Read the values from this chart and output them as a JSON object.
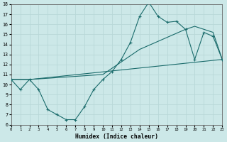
{
  "xlabel": "Humidex (Indice chaleur)",
  "bg_color": "#cce8e8",
  "line_color": "#1a6b6b",
  "grid_color": "#b8d8d8",
  "xlim": [
    0,
    23
  ],
  "ylim": [
    6,
    18
  ],
  "xticks": [
    0,
    1,
    2,
    3,
    4,
    5,
    6,
    7,
    8,
    9,
    10,
    11,
    12,
    13,
    14,
    15,
    16,
    17,
    18,
    19,
    20,
    21,
    22,
    23
  ],
  "yticks": [
    6,
    7,
    8,
    9,
    10,
    11,
    12,
    13,
    14,
    15,
    16,
    17,
    18
  ],
  "line1_x": [
    0,
    1,
    2,
    3,
    4,
    5,
    6,
    7,
    8,
    9,
    10,
    11,
    12,
    13,
    14,
    15,
    16,
    17,
    18,
    19,
    20,
    21,
    22,
    23
  ],
  "line1_y": [
    10.5,
    9.5,
    10.5,
    9.5,
    7.5,
    7.0,
    6.5,
    6.5,
    7.8,
    9.5,
    10.5,
    11.3,
    12.5,
    14.2,
    16.8,
    18.2,
    16.8,
    16.2,
    16.3,
    15.5,
    12.5,
    15.2,
    14.8,
    12.5
  ],
  "line2_x": [
    0,
    2,
    23
  ],
  "line2_y": [
    10.5,
    10.5,
    12.5
  ],
  "line3_x": [
    0,
    2,
    10,
    14,
    19,
    20,
    22,
    23
  ],
  "line3_y": [
    10.5,
    10.5,
    11.0,
    13.5,
    15.5,
    15.8,
    15.2,
    12.5
  ]
}
